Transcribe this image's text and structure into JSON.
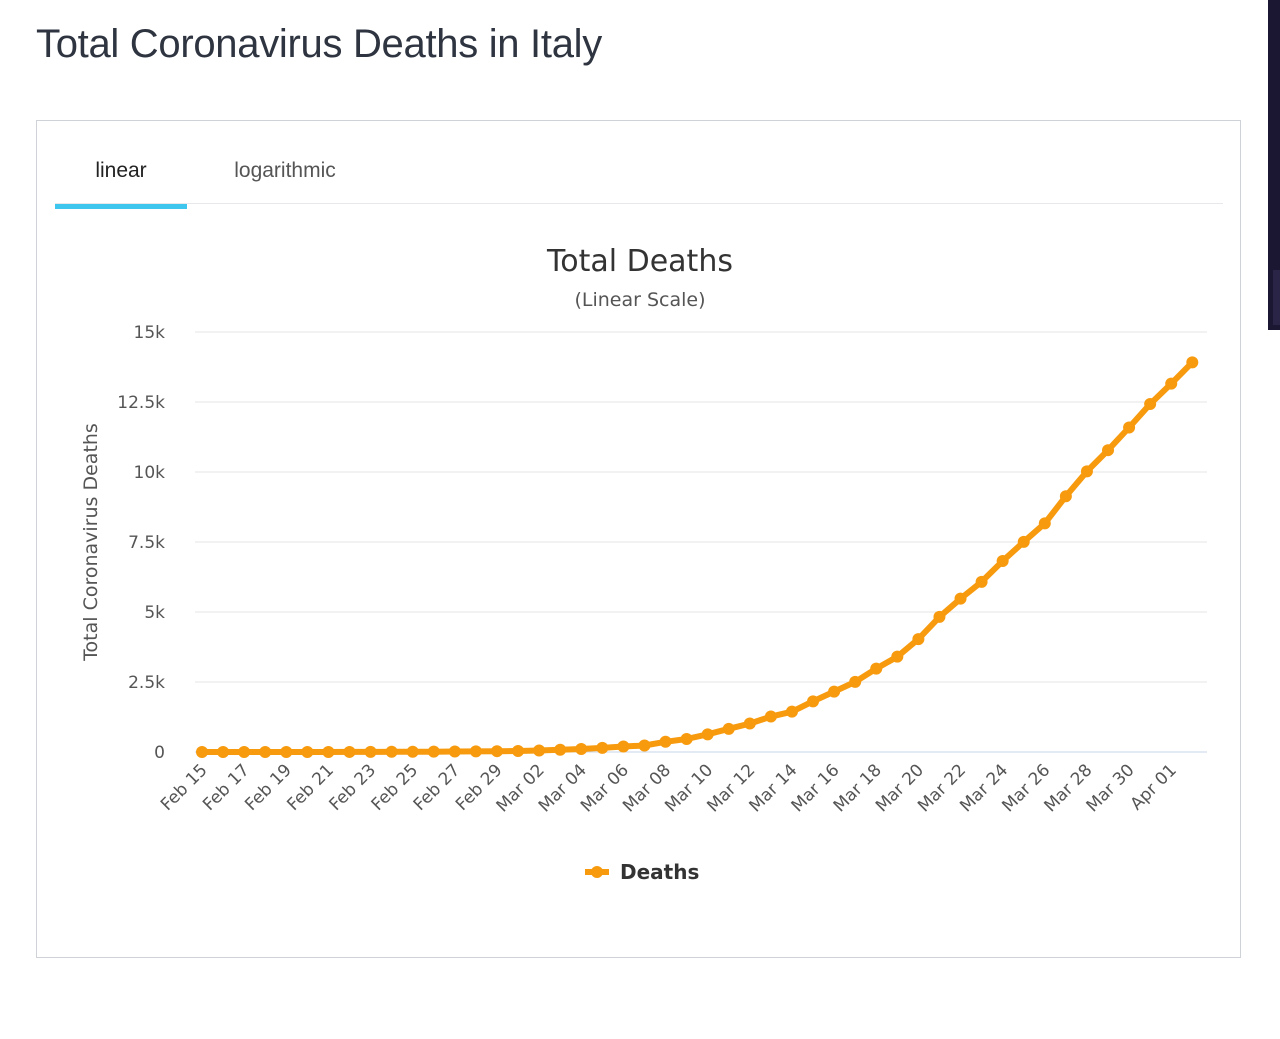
{
  "page": {
    "title": "Total Coronavirus Deaths in Italy"
  },
  "tabs": [
    {
      "label": "linear",
      "active": true
    },
    {
      "label": "logarithmic",
      "active": false
    }
  ],
  "colors": {
    "series": "#f79a0e",
    "active_tab_underline": "#3fc6ee",
    "grid": "#e6e6e6"
  },
  "chart_data": {
    "type": "line",
    "title": "Total Deaths",
    "subtitle": "(Linear Scale)",
    "ylabel": "Total Coronavirus Deaths",
    "xlabel": "",
    "ylim": [
      0,
      15000
    ],
    "yticks": [
      {
        "value": 0,
        "label": "0"
      },
      {
        "value": 2500,
        "label": "2.5k"
      },
      {
        "value": 5000,
        "label": "5k"
      },
      {
        "value": 7500,
        "label": "7.5k"
      },
      {
        "value": 10000,
        "label": "10k"
      },
      {
        "value": 12500,
        "label": "12.5k"
      },
      {
        "value": 15000,
        "label": "15k"
      }
    ],
    "x": [
      "Feb 15",
      "Feb 16",
      "Feb 17",
      "Feb 18",
      "Feb 19",
      "Feb 20",
      "Feb 21",
      "Feb 22",
      "Feb 23",
      "Feb 24",
      "Feb 25",
      "Feb 26",
      "Feb 27",
      "Feb 28",
      "Feb 29",
      "Mar 01",
      "Mar 02",
      "Mar 03",
      "Mar 04",
      "Mar 05",
      "Mar 06",
      "Mar 07",
      "Mar 08",
      "Mar 09",
      "Mar 10",
      "Mar 11",
      "Mar 12",
      "Mar 13",
      "Mar 14",
      "Mar 15",
      "Mar 16",
      "Mar 17",
      "Mar 18",
      "Mar 19",
      "Mar 20",
      "Mar 21",
      "Mar 22",
      "Mar 23",
      "Mar 24",
      "Mar 25",
      "Mar 26",
      "Mar 27",
      "Mar 28",
      "Mar 29",
      "Mar 30",
      "Mar 31",
      "Apr 01",
      "Apr 02"
    ],
    "x_tick_labels": [
      "Feb 15",
      "Feb 17",
      "Feb 19",
      "Feb 21",
      "Feb 23",
      "Feb 25",
      "Feb 27",
      "Feb 29",
      "Mar 02",
      "Mar 04",
      "Mar 06",
      "Mar 08",
      "Mar 10",
      "Mar 12",
      "Mar 14",
      "Mar 16",
      "Mar 18",
      "Mar 20",
      "Mar 22",
      "Mar 24",
      "Mar 26",
      "Mar 28",
      "Mar 30",
      "Apr 01"
    ],
    "series": [
      {
        "name": "Deaths",
        "values": [
          0,
          0,
          0,
          0,
          0,
          0,
          1,
          2,
          3,
          7,
          10,
          12,
          17,
          21,
          29,
          34,
          52,
          79,
          107,
          148,
          197,
          233,
          366,
          463,
          631,
          827,
          1016,
          1266,
          1441,
          1809,
          2158,
          2503,
          2978,
          3405,
          4032,
          4825,
          5476,
          6077,
          6820,
          7503,
          8165,
          9134,
          10023,
          10779,
          11591,
          12428,
          13155,
          13915
        ]
      }
    ],
    "legend": {
      "position": "bottom-center"
    },
    "grid": true
  }
}
